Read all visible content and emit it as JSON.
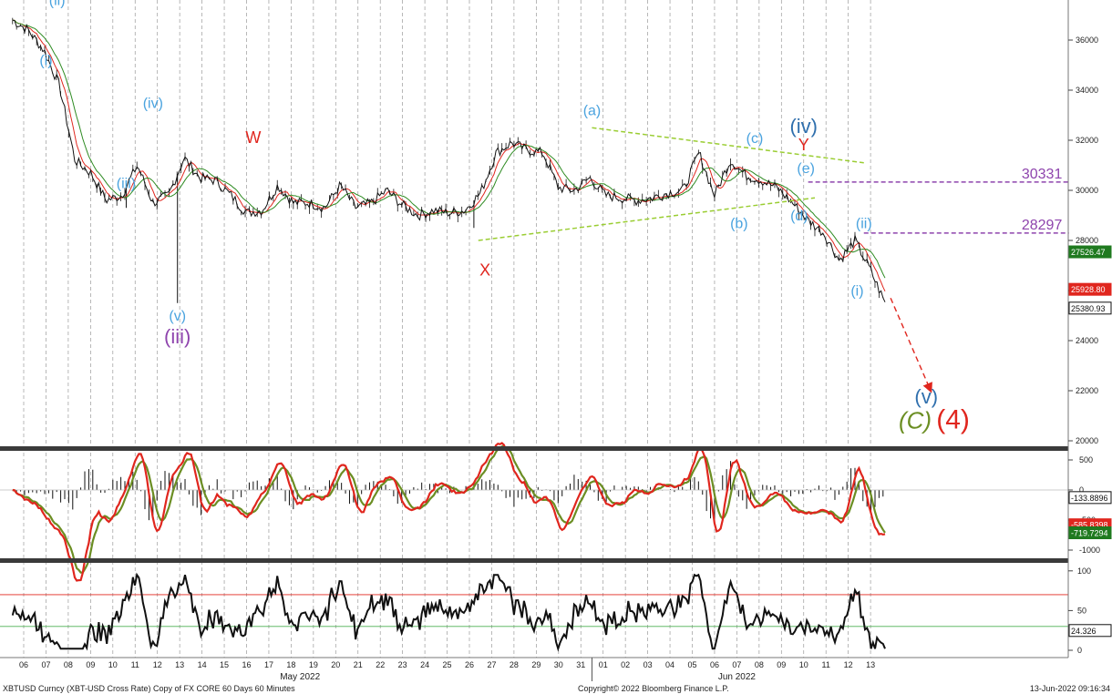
{
  "chart_data": [
    {
      "type": "line",
      "instrument": "XBTUSD Curncy (XBT-USD Cross Rate) Copy of FX CORE 60 Days 60 Minutes",
      "copyright": "Copyright© 2022 Bloomberg Finance L.P.",
      "timestamp": "13-Jun-2022 09:16:34",
      "x_ticks": [
        "06",
        "07",
        "08",
        "09",
        "10",
        "11",
        "12",
        "13",
        "14",
        "15",
        "16",
        "17",
        "18",
        "19",
        "20",
        "21",
        "22",
        "23",
        "24",
        "25",
        "26",
        "27",
        "28",
        "29",
        "30",
        "31",
        "01",
        "02",
        "03",
        "04",
        "05",
        "06",
        "07",
        "08",
        "09",
        "10",
        "11",
        "12",
        "13"
      ],
      "month_labels": [
        "May 2022",
        "Jun 2022"
      ],
      "y_ticks": [
        "36000",
        "34000",
        "32000",
        "30000",
        "28000",
        "26000",
        "24000",
        "22000",
        "20000"
      ],
      "ylim": [
        19800,
        37500
      ],
      "series": [
        {
          "color": "#000000",
          "style": "candles",
          "values": [
            36800,
            36400,
            35600,
            34200,
            31200,
            30700,
            29600,
            29800,
            31000,
            29500,
            29800,
            31300,
            30500,
            30400,
            29800,
            29100,
            29200,
            30200,
            29500,
            29500,
            29300,
            30200,
            29300,
            29500,
            30000,
            29400,
            29000,
            29200,
            29100,
            29200,
            29900,
            31500,
            31900,
            31600,
            31500,
            30100,
            30000,
            30500,
            29800,
            29700,
            29600,
            29700,
            29900,
            30000,
            31500,
            29800,
            31200,
            30600,
            30400,
            30100,
            29500,
            28800,
            28300,
            27200,
            28000,
            26800,
            25400
          ]
        },
        {
          "color": "#e0261e",
          "style": "line",
          "name_visible": false
        },
        {
          "color": "#2e8b22",
          "style": "line",
          "name_visible": false
        }
      ],
      "price_tags": [
        {
          "value": "27526.47",
          "color": "#1f7a1f"
        },
        {
          "value": "25928.80",
          "color": "#e0261e"
        },
        {
          "value": "25380.93",
          "color": "#111111"
        }
      ],
      "levels": [
        {
          "label": "30331",
          "value": 30331
        },
        {
          "label": "28297",
          "value": 28297
        }
      ],
      "wave_labels": [
        {
          "text": "(ii)",
          "color": "#4aa3df",
          "t": 1.5,
          "v": 37400
        },
        {
          "text": "(i)",
          "color": "#4aa3df",
          "t": 1.0,
          "v": 35000
        },
        {
          "text": "(iv)",
          "color": "#4aa3df",
          "t": 5.8,
          "v": 33300
        },
        {
          "text": "(iii)",
          "color": "#4aa3df",
          "t": 4.6,
          "v": 30100
        },
        {
          "text": "(v)",
          "color": "#4aa3df",
          "t": 6.9,
          "v": 24800
        },
        {
          "text": "(iii)",
          "color": "#8e44ad",
          "t": 6.9,
          "v": 23900
        },
        {
          "text": "W",
          "color": "#e0261e",
          "t": 10.3,
          "v": 31900
        },
        {
          "text": "X",
          "color": "#e0261e",
          "t": 20.7,
          "v": 26600
        },
        {
          "text": "(a)",
          "color": "#4aa3df",
          "t": 25.5,
          "v": 33000
        },
        {
          "text": "(c)",
          "color": "#4aa3df",
          "t": 32.8,
          "v": 31900
        },
        {
          "text": "(iv)",
          "color": "#2f6fad",
          "t": 35.0,
          "v": 32300
        },
        {
          "text": "Y",
          "color": "#e0261e",
          "t": 35.0,
          "v": 31600
        },
        {
          "text": "(e)",
          "color": "#4aa3df",
          "t": 35.1,
          "v": 30700
        },
        {
          "text": "(b)",
          "color": "#4aa3df",
          "t": 32.1,
          "v": 28500
        },
        {
          "text": "(d)",
          "color": "#4aa3df",
          "t": 34.8,
          "v": 28800
        },
        {
          "text": "(ii)",
          "color": "#4aa3df",
          "t": 37.7,
          "v": 28500
        },
        {
          "text": "(i)",
          "color": "#4aa3df",
          "t": 37.4,
          "v": 25800
        },
        {
          "text": "(v)",
          "color": "#2f6fad",
          "t": 40.5,
          "v": 21500
        },
        {
          "text": "(C)",
          "color": "#6b8e23",
          "t": 40.0,
          "v": 20500
        },
        {
          "text": "(4)",
          "color": "#e0261e",
          "t": 41.7,
          "v": 20500
        }
      ]
    },
    {
      "type": "line",
      "y_ticks": [
        "500",
        "0",
        "-500",
        "-1000"
      ],
      "ylim": [
        -1250,
        650
      ],
      "price_tags": [
        {
          "value": "-133.8896",
          "color": "#111111"
        },
        {
          "value": "-585.8398",
          "color": "#e0261e"
        },
        {
          "value": "-719.7294",
          "color": "#1f7a1f"
        }
      ]
    },
    {
      "type": "line",
      "y_ticks": [
        "100",
        "50",
        "0"
      ],
      "ylim": [
        -15,
        105
      ],
      "reference_lines": [
        70,
        30
      ],
      "price_tags": [
        {
          "value": "24.326",
          "color": "#111111"
        }
      ]
    }
  ]
}
